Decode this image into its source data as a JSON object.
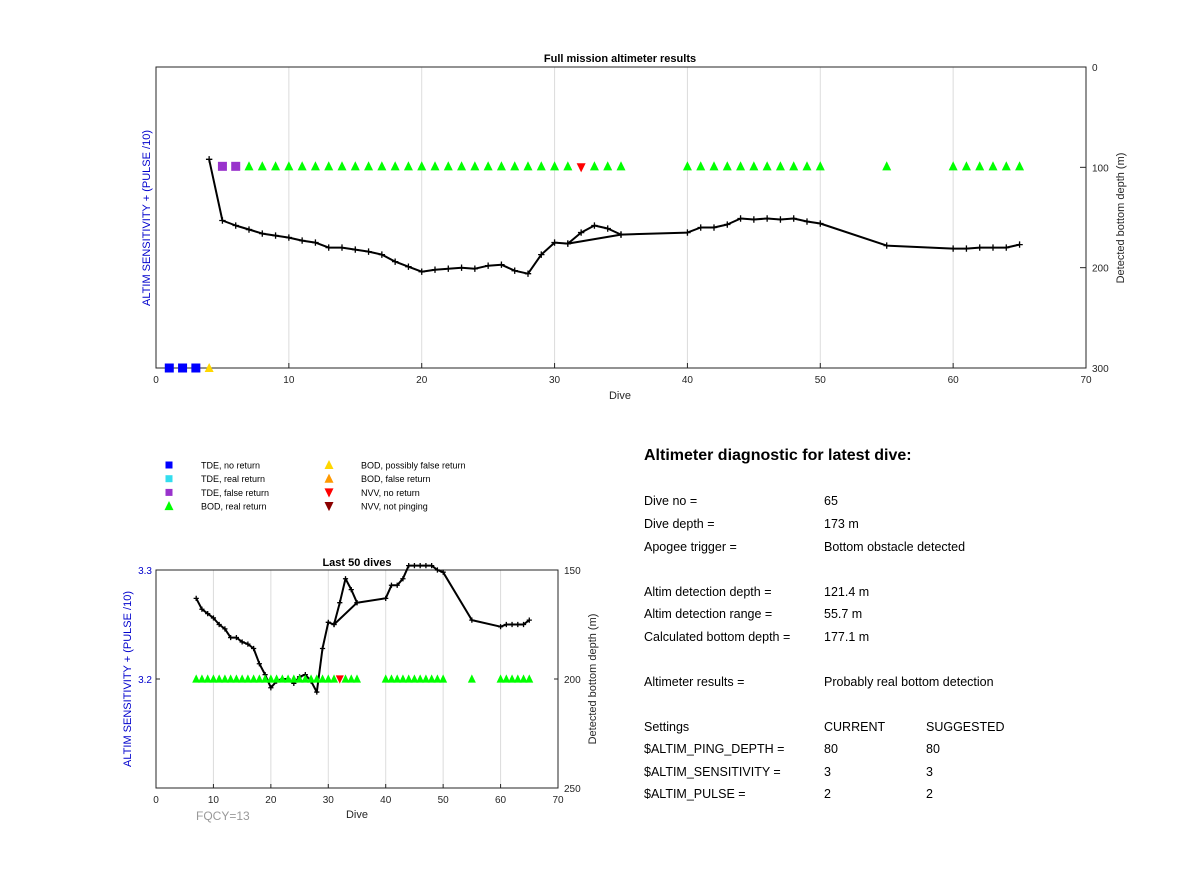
{
  "chart_data": [
    {
      "type": "line",
      "title": "Full mission altimeter results",
      "xlabel": "Dive",
      "ylabel_left": "ALTIM SENSITIVITY + (PULSE /10)",
      "ylabel_right": "Detected bottom depth (m)",
      "xlim": [
        0,
        70
      ],
      "ylim_right": [
        0,
        300
      ],
      "y_right_reversed": true,
      "x_ticks": [
        0,
        10,
        20,
        30,
        40,
        50,
        60,
        70
      ],
      "y_right_ticks": [
        0,
        100,
        200,
        300
      ],
      "grid": "vertical",
      "series": [
        {
          "role": "bottom_depth_line",
          "points": [
            [
              4,
              92
            ],
            [
              5,
              153
            ],
            [
              6,
              158
            ],
            [
              7,
              162
            ],
            [
              8,
              166
            ],
            [
              9,
              168
            ],
            [
              10,
              170
            ],
            [
              11,
              173
            ],
            [
              12,
              175
            ],
            [
              13,
              180
            ],
            [
              14,
              180
            ],
            [
              15,
              182
            ],
            [
              16,
              184
            ],
            [
              17,
              187
            ],
            [
              18,
              194
            ],
            [
              19,
              199
            ],
            [
              20,
              204
            ],
            [
              21,
              202
            ],
            [
              22,
              201
            ],
            [
              23,
              200
            ],
            [
              24,
              201
            ],
            [
              25,
              198
            ],
            [
              26,
              197
            ],
            [
              27,
              203
            ],
            [
              28,
              206
            ],
            [
              29,
              187
            ],
            [
              30,
              175
            ],
            [
              31,
              176
            ],
            [
              32,
              165
            ],
            [
              33,
              158
            ],
            [
              34,
              161
            ],
            [
              35,
              167
            ],
            [
              31,
              176
            ],
            [
              35,
              167
            ],
            [
              40,
              165
            ],
            [
              41,
              160
            ],
            [
              42,
              160
            ],
            [
              43,
              157
            ],
            [
              44,
              151
            ],
            [
              45,
              152
            ],
            [
              46,
              151
            ],
            [
              47,
              152
            ],
            [
              48,
              151
            ],
            [
              49,
              154
            ],
            [
              50,
              156
            ],
            [
              55,
              178
            ],
            [
              60,
              181
            ],
            [
              61,
              181
            ],
            [
              62,
              180
            ],
            [
              63,
              180
            ],
            [
              64,
              180
            ],
            [
              65,
              177
            ]
          ]
        },
        {
          "name": "TDE, no return",
          "marker": "square",
          "color": "#0000ff",
          "x": [
            1,
            2,
            3
          ],
          "y": [
            300,
            300,
            300
          ]
        },
        {
          "name": "BOD, possibly false return",
          "marker": "triangle-up",
          "color": "#ffd700",
          "x": [
            4
          ],
          "y": [
            300
          ]
        },
        {
          "name": "TDE, false return",
          "marker": "square",
          "color": "#9933cc",
          "x": [
            5,
            6
          ],
          "y": [
            99,
            99
          ]
        },
        {
          "name": "BOD, real return",
          "marker": "triangle-up",
          "color": "#00ff00",
          "x": [
            7,
            8,
            9,
            10,
            11,
            12,
            13,
            14,
            15,
            16,
            17,
            18,
            19,
            20,
            21,
            22,
            23,
            24,
            25,
            26,
            27,
            28,
            29,
            30,
            31,
            33,
            34,
            35,
            40,
            41,
            42,
            43,
            44,
            45,
            46,
            47,
            48,
            49,
            50,
            55,
            60,
            61,
            62,
            63,
            64,
            65
          ],
          "y_all": 99
        },
        {
          "name": "NVV, no return",
          "marker": "triangle-down",
          "color": "#ff0000",
          "x": [
            32
          ],
          "y": [
            100
          ]
        }
      ]
    },
    {
      "type": "line",
      "title": "Last 50 dives",
      "xlabel": "Dive",
      "ylabel_left": "ALTIM SENSITIVITY + (PULSE /10)",
      "ylabel_right": "Detected bottom depth (m)",
      "xlim": [
        0,
        70
      ],
      "ylim_left": [
        3.1,
        3.3
      ],
      "ylim_right": [
        150,
        250
      ],
      "y_right_reversed": true,
      "x_ticks": [
        0,
        10,
        20,
        30,
        40,
        50,
        60,
        70
      ],
      "x_tick_labels": [
        "0",
        "10",
        "20",
        "30",
        "40",
        "50",
        "60",
        "70"
      ],
      "y_left_ticks": [
        3.2,
        3.3
      ],
      "y_left_tick_labels": [
        "3.2",
        "3.3"
      ],
      "y_right_ticks": [
        150,
        200,
        250
      ],
      "y_right_tick_labels": [
        "150",
        "200",
        "250"
      ],
      "grid": "vertical",
      "series": [
        {
          "role": "bottom_depth_line",
          "points": [
            [
              7,
              163
            ],
            [
              8,
              168
            ],
            [
              9,
              170
            ],
            [
              10,
              172
            ],
            [
              11,
              175
            ],
            [
              12,
              177
            ],
            [
              13,
              181
            ],
            [
              14,
              181
            ],
            [
              15,
              183
            ],
            [
              16,
              184
            ],
            [
              17,
              186
            ],
            [
              18,
              193
            ],
            [
              19,
              198
            ],
            [
              20,
              204
            ],
            [
              21,
              201
            ],
            [
              22,
              200
            ],
            [
              23,
              200
            ],
            [
              24,
              202
            ],
            [
              25,
              199
            ],
            [
              26,
              198
            ],
            [
              27,
              201
            ],
            [
              28,
              206
            ],
            [
              29,
              186
            ],
            [
              30,
              174
            ],
            [
              31,
              175
            ],
            [
              32,
              165
            ],
            [
              33,
              154
            ],
            [
              34,
              159
            ],
            [
              35,
              165
            ],
            [
              31,
              175
            ],
            [
              35,
              165
            ],
            [
              40,
              163
            ],
            [
              41,
              157
            ],
            [
              42,
              157
            ],
            [
              43,
              154
            ],
            [
              44,
              148
            ],
            [
              45,
              148
            ],
            [
              46,
              148
            ],
            [
              47,
              148
            ],
            [
              48,
              148
            ],
            [
              49,
              150
            ],
            [
              50,
              151
            ],
            [
              55,
              173
            ],
            [
              60,
              176
            ],
            [
              61,
              175
            ],
            [
              62,
              175
            ],
            [
              63,
              175
            ],
            [
              64,
              175
            ],
            [
              65,
              173
            ]
          ]
        },
        {
          "name": "BOD, real return",
          "marker": "triangle-up",
          "color": "#00ff00",
          "x": [
            7,
            8,
            9,
            10,
            11,
            12,
            13,
            14,
            15,
            16,
            17,
            18,
            19,
            20,
            21,
            22,
            23,
            24,
            25,
            26,
            27,
            28,
            29,
            30,
            31,
            33,
            34,
            35,
            40,
            41,
            42,
            43,
            44,
            45,
            46,
            47,
            48,
            49,
            50,
            55,
            60,
            61,
            62,
            63,
            64,
            65
          ],
          "y_all": 3.2
        },
        {
          "name": "NVV, no return",
          "marker": "triangle-down",
          "color": "#ff0000",
          "x": [
            32
          ],
          "y": [
            3.2
          ]
        }
      ]
    }
  ],
  "top": {
    "x_tick_labels": [
      "0",
      "10",
      "20",
      "30",
      "40",
      "50",
      "60",
      "70"
    ],
    "y_right_tick_labels": [
      "0",
      "100",
      "200",
      "300"
    ]
  },
  "annotation": {
    "fqcy": "FQCY=13"
  },
  "legend": {
    "items": [
      {
        "label": "TDE, no return",
        "marker": "square",
        "color": "#0000ff"
      },
      {
        "label": "TDE, real return",
        "marker": "square",
        "color": "#33ddee"
      },
      {
        "label": "TDE, false return",
        "marker": "square",
        "color": "#9933cc"
      },
      {
        "label": "BOD, real return",
        "marker": "triangle-up",
        "color": "#00ff00"
      },
      {
        "label": "BOD, possibly false return",
        "marker": "triangle-up",
        "color": "#ffd700"
      },
      {
        "label": "BOD, false return",
        "marker": "triangle-up",
        "color": "#ff9900"
      },
      {
        "label": "NVV, no return",
        "marker": "triangle-down",
        "color": "#ff0000"
      },
      {
        "label": "NVV, not pinging",
        "marker": "triangle-down",
        "color": "#8b0000"
      }
    ]
  },
  "diagnostic": {
    "title": "Altimeter diagnostic for latest dive:",
    "dive_no_label": "Dive no =",
    "dive_no": "65",
    "dive_depth_label": "Dive depth =",
    "dive_depth": "173 m",
    "apogee_label": "Apogee trigger =",
    "apogee": "Bottom obstacle detected",
    "detection_depth_label": "Altim detection depth =",
    "detection_depth": "121.4 m",
    "detection_range_label": "Altim detection range =",
    "detection_range": "55.7 m",
    "calc_bottom_label": "Calculated bottom depth =",
    "calc_bottom": "177.1 m",
    "results_label": "Altimeter results =",
    "results": "Probably real bottom detection",
    "settings_label": "Settings",
    "current_label": "CURRENT",
    "suggested_label": "SUGGESTED",
    "ping_depth_label": "$ALTIM_PING_DEPTH =",
    "ping_depth_current": "80",
    "ping_depth_suggested": "80",
    "sensitivity_label": "$ALTIM_SENSITIVITY =",
    "sensitivity_current": "3",
    "sensitivity_suggested": "3",
    "pulse_label": "$ALTIM_PULSE =",
    "pulse_current": "2",
    "pulse_suggested": "2"
  },
  "colors": {
    "axis": "#262626",
    "grid": "#dcdcdc",
    "left_axis_label": "#0000cc",
    "line": "#000000",
    "fqcy": "#999999"
  }
}
